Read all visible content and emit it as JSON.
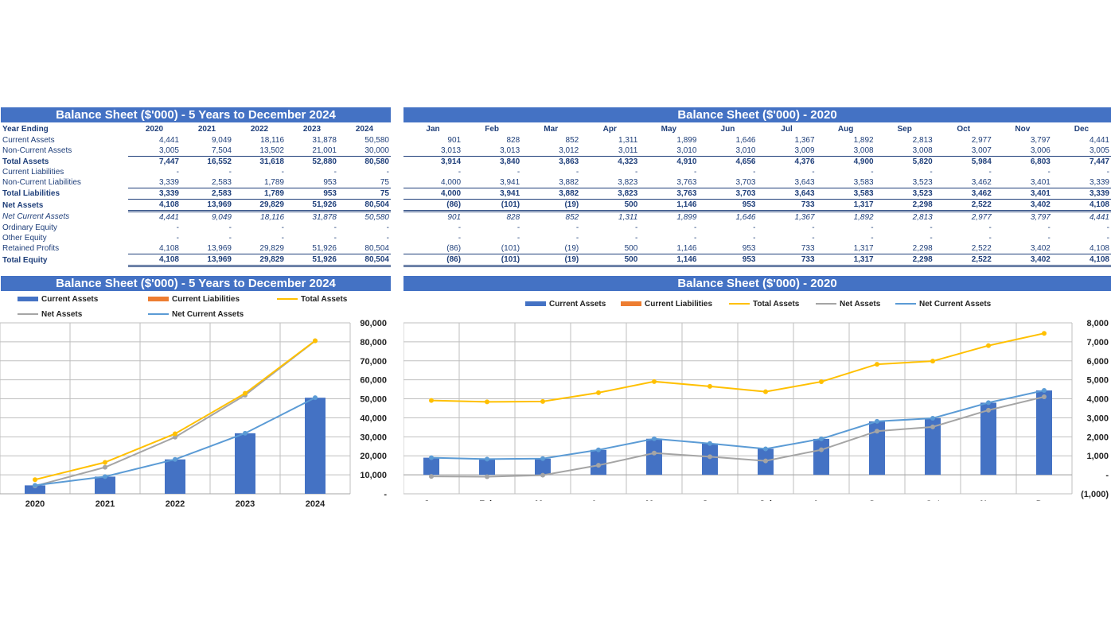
{
  "annual_table": {
    "title": "Balance Sheet ($'000) - 5 Years to December 2024",
    "year_label": "Year Ending",
    "columns": [
      "2020",
      "2021",
      "2022",
      "2023",
      "2024"
    ],
    "rows": [
      {
        "label": "Current Assets",
        "style": "",
        "values": [
          "4,441",
          "9,049",
          "18,116",
          "31,878",
          "50,580"
        ]
      },
      {
        "label": "Non-Current Assets",
        "style": "",
        "values": [
          "3,005",
          "7,504",
          "13,502",
          "21,001",
          "30,000"
        ]
      },
      {
        "label": "Total Assets",
        "style": "bold topline",
        "values": [
          "7,447",
          "16,552",
          "31,618",
          "52,880",
          "80,580"
        ]
      },
      {
        "label": "Current Liabilities",
        "style": "",
        "values": [
          "-",
          "-",
          "-",
          "-",
          "-"
        ]
      },
      {
        "label": "Non-Current Liabilities",
        "style": "",
        "values": [
          "3,339",
          "2,583",
          "1,789",
          "953",
          "75"
        ]
      },
      {
        "label": "Total Liabilities",
        "style": "bold topline",
        "values": [
          "3,339",
          "2,583",
          "1,789",
          "953",
          "75"
        ]
      },
      {
        "label": "Net Assets",
        "style": "bold topline dbl",
        "values": [
          "4,108",
          "13,969",
          "29,829",
          "51,926",
          "80,504"
        ]
      },
      {
        "label": "Net Current Assets",
        "style": "ital",
        "values": [
          "4,441",
          "9,049",
          "18,116",
          "31,878",
          "50,580"
        ]
      },
      {
        "label": "Ordinary Equity",
        "style": "",
        "values": [
          "-",
          "-",
          "-",
          "-",
          "-"
        ]
      },
      {
        "label": "Other Equity",
        "style": "",
        "values": [
          "-",
          "-",
          "-",
          "-",
          "-"
        ]
      },
      {
        "label": "Retained Profits",
        "style": "",
        "values": [
          "4,108",
          "13,969",
          "29,829",
          "51,926",
          "80,504"
        ]
      },
      {
        "label": "Total Equity",
        "style": "bold topline dbl",
        "values": [
          "4,108",
          "13,969",
          "29,829",
          "51,926",
          "80,504"
        ]
      }
    ]
  },
  "monthly_table": {
    "title": "Balance Sheet ($'000) - 2020",
    "columns": [
      "Jan",
      "Feb",
      "Mar",
      "Apr",
      "May",
      "Jun",
      "Jul",
      "Aug",
      "Sep",
      "Oct",
      "Nov",
      "Dec"
    ],
    "rows": [
      {
        "style": "",
        "values": [
          "901",
          "828",
          "852",
          "1,311",
          "1,899",
          "1,646",
          "1,367",
          "1,892",
          "2,813",
          "2,977",
          "3,797",
          "4,441"
        ]
      },
      {
        "style": "",
        "values": [
          "3,013",
          "3,013",
          "3,012",
          "3,011",
          "3,010",
          "3,010",
          "3,009",
          "3,008",
          "3,008",
          "3,007",
          "3,006",
          "3,005"
        ]
      },
      {
        "style": "bold topline",
        "values": [
          "3,914",
          "3,840",
          "3,863",
          "4,323",
          "4,910",
          "4,656",
          "4,376",
          "4,900",
          "5,820",
          "5,984",
          "6,803",
          "7,447"
        ]
      },
      {
        "style": "",
        "values": [
          "-",
          "-",
          "-",
          "-",
          "-",
          "-",
          "-",
          "-",
          "-",
          "-",
          "-",
          "-"
        ]
      },
      {
        "style": "",
        "values": [
          "4,000",
          "3,941",
          "3,882",
          "3,823",
          "3,763",
          "3,703",
          "3,643",
          "3,583",
          "3,523",
          "3,462",
          "3,401",
          "3,339"
        ]
      },
      {
        "style": "bold topline",
        "values": [
          "4,000",
          "3,941",
          "3,882",
          "3,823",
          "3,763",
          "3,703",
          "3,643",
          "3,583",
          "3,523",
          "3,462",
          "3,401",
          "3,339"
        ]
      },
      {
        "style": "bold topline dbl",
        "values": [
          "(86)",
          "(101)",
          "(19)",
          "500",
          "1,146",
          "953",
          "733",
          "1,317",
          "2,298",
          "2,522",
          "3,402",
          "4,108"
        ]
      },
      {
        "style": "ital",
        "values": [
          "901",
          "828",
          "852",
          "1,311",
          "1,899",
          "1,646",
          "1,367",
          "1,892",
          "2,813",
          "2,977",
          "3,797",
          "4,441"
        ]
      },
      {
        "style": "",
        "values": [
          "-",
          "-",
          "-",
          "-",
          "-",
          "-",
          "-",
          "-",
          "-",
          "-",
          "-",
          "-"
        ]
      },
      {
        "style": "",
        "values": [
          "-",
          "-",
          "-",
          "-",
          "-",
          "-",
          "-",
          "-",
          "-",
          "-",
          "-",
          "-"
        ]
      },
      {
        "style": "",
        "values": [
          "(86)",
          "(101)",
          "(19)",
          "500",
          "1,146",
          "953",
          "733",
          "1,317",
          "2,298",
          "2,522",
          "3,402",
          "4,108"
        ]
      },
      {
        "style": "bold topline dbl",
        "values": [
          "(86)",
          "(101)",
          "(19)",
          "500",
          "1,146",
          "953",
          "733",
          "1,317",
          "2,298",
          "2,522",
          "3,402",
          "4,108"
        ]
      }
    ]
  },
  "colors": {
    "header_bg": "#4472c4",
    "current_assets": "#4472c4",
    "current_liabilities": "#ed7d31",
    "total_assets": "#ffc000",
    "net_assets": "#a5a5a5",
    "net_current_assets": "#5b9bd5",
    "text": "#1f3f7a"
  },
  "legend": {
    "current_assets": "Current Assets",
    "current_liabilities": "Current Liabilities",
    "total_assets": "Total Assets",
    "net_assets": "Net Assets",
    "net_current_assets": "Net Current Assets"
  },
  "chart_data": [
    {
      "type": "bar",
      "title": "Balance Sheet ($'000) - 5 Years to December 2024",
      "categories": [
        "2020",
        "2021",
        "2022",
        "2023",
        "2024"
      ],
      "ylim": [
        0,
        90000
      ],
      "y_ticks": [
        0,
        10000,
        20000,
        30000,
        40000,
        50000,
        60000,
        70000,
        80000,
        90000
      ],
      "y_tick_labels": [
        "-",
        "10,000",
        "20,000",
        "30,000",
        "40,000",
        "50,000",
        "60,000",
        "70,000",
        "80,000",
        "90,000"
      ],
      "y_axis_side": "right",
      "grid": true,
      "legend_position": "top",
      "series": [
        {
          "name": "Current Assets",
          "kind": "bar",
          "values": [
            4441,
            9049,
            18116,
            31878,
            50580
          ]
        },
        {
          "name": "Current Liabilities",
          "kind": "bar",
          "values": [
            0,
            0,
            0,
            0,
            0
          ]
        },
        {
          "name": "Total Assets",
          "kind": "line",
          "values": [
            7447,
            16552,
            31618,
            52880,
            80580
          ]
        },
        {
          "name": "Net Assets",
          "kind": "line",
          "values": [
            4108,
            13969,
            29829,
            51926,
            80504
          ]
        },
        {
          "name": "Net Current Assets",
          "kind": "line",
          "values": [
            4441,
            9049,
            18116,
            31878,
            50580
          ]
        }
      ]
    },
    {
      "type": "bar",
      "title": "Balance Sheet ($'000) - 2020",
      "categories": [
        "Jan",
        "Feb",
        "Mar",
        "Apr",
        "May",
        "Jun",
        "Jul",
        "Aug",
        "Sep",
        "Oct",
        "Nov",
        "Dec"
      ],
      "ylim": [
        -1000,
        8000
      ],
      "y_ticks": [
        -1000,
        0,
        1000,
        2000,
        3000,
        4000,
        5000,
        6000,
        7000,
        8000
      ],
      "y_tick_labels": [
        "(1,000)",
        "-",
        "1,000",
        "2,000",
        "3,000",
        "4,000",
        "5,000",
        "6,000",
        "7,000",
        "8,000"
      ],
      "y_axis_side": "right",
      "grid": true,
      "legend_position": "top",
      "series": [
        {
          "name": "Current Assets",
          "kind": "bar",
          "values": [
            901,
            828,
            852,
            1311,
            1899,
            1646,
            1367,
            1892,
            2813,
            2977,
            3797,
            4441
          ]
        },
        {
          "name": "Current Liabilities",
          "kind": "bar",
          "values": [
            0,
            0,
            0,
            0,
            0,
            0,
            0,
            0,
            0,
            0,
            0,
            0
          ]
        },
        {
          "name": "Total Assets",
          "kind": "line",
          "values": [
            3914,
            3840,
            3863,
            4323,
            4910,
            4656,
            4376,
            4900,
            5820,
            5984,
            6803,
            7447
          ]
        },
        {
          "name": "Net Assets",
          "kind": "line",
          "values": [
            -86,
            -101,
            -19,
            500,
            1146,
            953,
            733,
            1317,
            2298,
            2522,
            3402,
            4108
          ]
        },
        {
          "name": "Net Current Assets",
          "kind": "line",
          "values": [
            901,
            828,
            852,
            1311,
            1899,
            1646,
            1367,
            1892,
            2813,
            2977,
            3797,
            4441
          ]
        }
      ]
    }
  ]
}
